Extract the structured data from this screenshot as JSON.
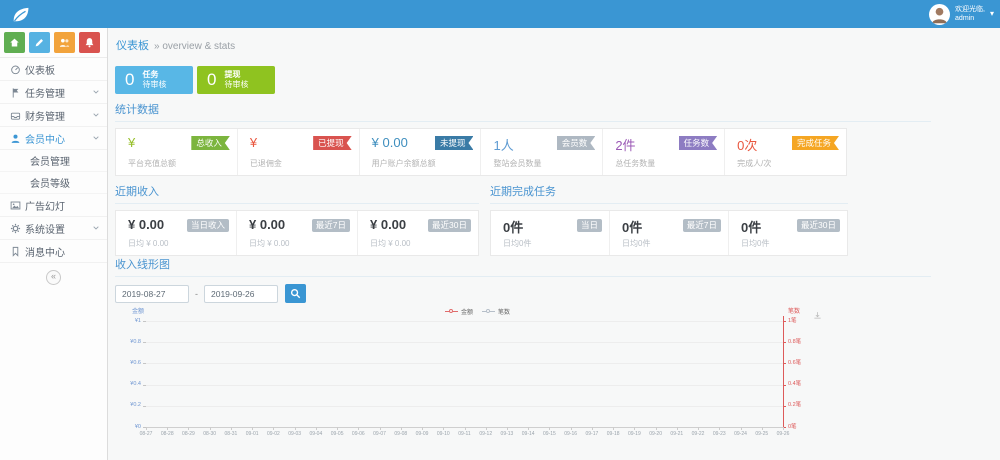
{
  "topbar": {
    "welcome": "欢迎光临,",
    "username": "admin"
  },
  "sidebar": {
    "quick": [
      {
        "name": "home",
        "color": "#60ae52"
      },
      {
        "name": "pencil",
        "color": "#56b2e2"
      },
      {
        "name": "users",
        "color": "#f2a33c"
      },
      {
        "name": "bell",
        "color": "#d9534f"
      }
    ],
    "items": [
      {
        "label": "仪表板",
        "icon": "gauge"
      },
      {
        "label": "任务管理",
        "icon": "flag"
      },
      {
        "label": "财务管理",
        "icon": "drawer"
      },
      {
        "label": "会员中心",
        "icon": "user"
      },
      {
        "label": "广告幻灯",
        "icon": "image"
      },
      {
        "label": "系统设置",
        "icon": "gear"
      },
      {
        "label": "消息中心",
        "icon": "bookmark"
      }
    ],
    "subitems": [
      "会员管理",
      "会员等级"
    ],
    "collapse_glyph": "«"
  },
  "breadcrumb": {
    "active": "仪表板",
    "rest": "» overview & stats"
  },
  "summary": [
    {
      "value": "0",
      "title": "任务",
      "subtitle": "待审核",
      "color": "#58b7e6"
    },
    {
      "value": "0",
      "title": "提现",
      "subtitle": "待审核",
      "color": "#8fc320"
    }
  ],
  "stats": {
    "title": "统计数据",
    "cards": [
      {
        "value": "¥",
        "value_color": "#97c02a",
        "label": "平台充值总额",
        "badge": "总收入",
        "badge_color": "#7cb53e"
      },
      {
        "value": "¥",
        "value_color": "#e9573f",
        "label": "已退佣金",
        "badge": "已提现",
        "badge_color": "#d9534f"
      },
      {
        "value": "¥ 0.00",
        "value_color": "#3e8ebe",
        "label": "用户账户余额总额",
        "badge": "未提现",
        "badge_color": "#3a7ba6"
      },
      {
        "value": "1人",
        "value_color": "#5e9bd2",
        "label": "整站会员数量",
        "badge": "会员数",
        "badge_color": "#aeb8c2"
      },
      {
        "value": "2件",
        "value_color": "#9b59b6",
        "label": "总任务数量",
        "badge": "任务数",
        "badge_color": "#8d7cc2"
      },
      {
        "value": "0次",
        "value_color": "#e9573f",
        "label": "完成人/次",
        "badge": "完成任务",
        "badge_color": "#f5a623"
      }
    ]
  },
  "income": {
    "title": "近期收入",
    "cards": [
      {
        "value": "¥ 0.00",
        "sub": "日均 ¥ 0.00",
        "badge": "当日收入"
      },
      {
        "value": "¥ 0.00",
        "sub": "日均 ¥ 0.00",
        "badge": "最近7日"
      },
      {
        "value": "¥ 0.00",
        "sub": "日均 ¥ 0.00",
        "badge": "最近30日"
      }
    ]
  },
  "tasks": {
    "title": "近期完成任务",
    "cards": [
      {
        "value": "0件",
        "sub": "日均0件",
        "badge": "当日"
      },
      {
        "value": "0件",
        "sub": "日均0件",
        "badge": "最近7日"
      },
      {
        "value": "0件",
        "sub": "日均0件",
        "badge": "最近30日"
      }
    ]
  },
  "chart_section": {
    "title": "收入线形图",
    "date_from": "2019-08-27",
    "date_to": "2019-09-26",
    "separator": "-"
  },
  "chart_data": {
    "type": "line",
    "title": "收入线形图",
    "x": [
      "08-27",
      "08-28",
      "08-29",
      "08-30",
      "08-31",
      "09-01",
      "09-02",
      "09-03",
      "09-04",
      "09-05",
      "09-06",
      "09-07",
      "09-08",
      "09-09",
      "09-10",
      "09-11",
      "09-12",
      "09-13",
      "09-14",
      "09-15",
      "09-16",
      "09-17",
      "09-18",
      "09-19",
      "09-20",
      "09-21",
      "09-22",
      "09-23",
      "09-24",
      "09-25",
      "09-26"
    ],
    "series": [
      {
        "name": "金额",
        "color": "#e06c6c",
        "axis": "left",
        "values": [
          0,
          0,
          0,
          0,
          0,
          0,
          0,
          0,
          0,
          0,
          0,
          0,
          0,
          0,
          0,
          0,
          0,
          0,
          0,
          0,
          0,
          0,
          0,
          0,
          0,
          0,
          0,
          0,
          0,
          0,
          0
        ]
      },
      {
        "name": "笔数",
        "color": "#b6bfc9",
        "axis": "right",
        "values": [
          0,
          0,
          0,
          0,
          0,
          0,
          0,
          0,
          0,
          0,
          0,
          0,
          0,
          0,
          0,
          0,
          0,
          0,
          0,
          0,
          0,
          0,
          0,
          0,
          0,
          0,
          0,
          0,
          0,
          0,
          0
        ]
      }
    ],
    "y_left": {
      "name": "金额",
      "color": "#6f96d2",
      "min": 0,
      "max": 1,
      "labels_bottom_to_top": [
        "¥0",
        "¥0.2",
        "¥0.4",
        "¥0.6",
        "¥0.8",
        "¥1"
      ]
    },
    "y_right": {
      "name": "笔数",
      "color": "#dd5a5a",
      "min": 0,
      "max": 1,
      "labels_bottom_to_top": [
        "0笔",
        "0.2笔",
        "0.4笔",
        "0.6笔",
        "0.8笔",
        "1笔"
      ]
    },
    "grid": true,
    "legend_position": "top"
  }
}
